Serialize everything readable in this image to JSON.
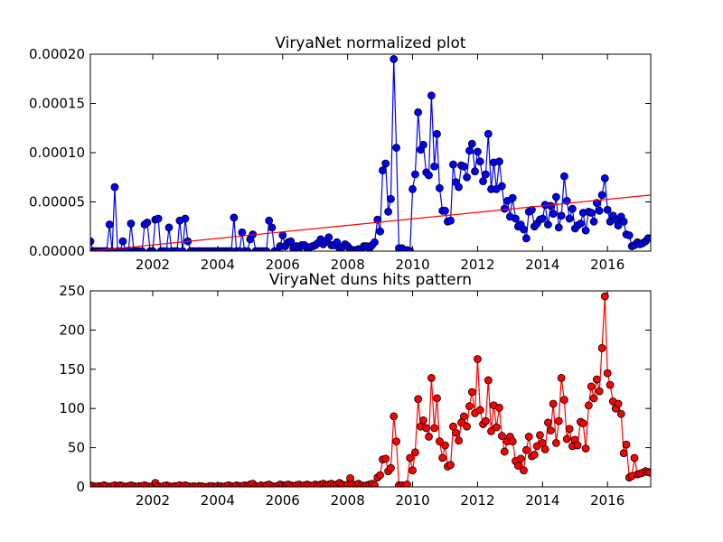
{
  "chart_data": [
    {
      "type": "line",
      "title": "ViryaNet normalized plot",
      "color": "#0000ff",
      "x": [
        2000.08,
        2000.17,
        2000.25,
        2000.33,
        2000.42,
        2000.5,
        2000.58,
        2000.67,
        2000.75,
        2000.83,
        2000.92,
        2001,
        2001.08,
        2001.17,
        2001.25,
        2001.33,
        2001.42,
        2001.5,
        2001.58,
        2001.67,
        2001.75,
        2001.83,
        2001.92,
        2002,
        2002.08,
        2002.17,
        2002.25,
        2002.33,
        2002.42,
        2002.5,
        2002.58,
        2002.67,
        2002.75,
        2002.83,
        2002.92,
        2003,
        2003.08,
        2003.17,
        2003.25,
        2003.33,
        2003.42,
        2003.5,
        2003.58,
        2003.67,
        2003.75,
        2003.83,
        2003.92,
        2004,
        2004.08,
        2004.17,
        2004.25,
        2004.33,
        2004.42,
        2004.5,
        2004.58,
        2004.67,
        2004.75,
        2004.83,
        2004.92,
        2005,
        2005.08,
        2005.17,
        2005.25,
        2005.33,
        2005.42,
        2005.5,
        2005.58,
        2005.67,
        2005.75,
        2005.83,
        2005.92,
        2006,
        2006.08,
        2006.17,
        2006.25,
        2006.33,
        2006.42,
        2006.5,
        2006.58,
        2006.67,
        2006.75,
        2006.83,
        2006.92,
        2007,
        2007.08,
        2007.17,
        2007.25,
        2007.33,
        2007.42,
        2007.5,
        2007.58,
        2007.67,
        2007.75,
        2007.83,
        2007.92,
        2008,
        2008.08,
        2008.17,
        2008.25,
        2008.33,
        2008.42,
        2008.5,
        2008.58,
        2008.67,
        2008.75,
        2008.83,
        2008.92,
        2009,
        2009.08,
        2009.17,
        2009.25,
        2009.33,
        2009.42,
        2009.5,
        2009.58,
        2009.67,
        2009.75,
        2009.83,
        2009.92,
        2010,
        2010.08,
        2010.17,
        2010.25,
        2010.33,
        2010.42,
        2010.5,
        2010.58,
        2010.67,
        2010.75,
        2010.83,
        2010.92,
        2011,
        2011.08,
        2011.17,
        2011.25,
        2011.33,
        2011.42,
        2011.5,
        2011.58,
        2011.67,
        2011.75,
        2011.83,
        2011.92,
        2012,
        2012.08,
        2012.17,
        2012.25,
        2012.33,
        2012.42,
        2012.5,
        2012.58,
        2012.67,
        2012.75,
        2012.83,
        2012.92,
        2013,
        2013.08,
        2013.17,
        2013.25,
        2013.33,
        2013.42,
        2013.5,
        2013.58,
        2013.67,
        2013.75,
        2013.83,
        2013.92,
        2014,
        2014.08,
        2014.17,
        2014.25,
        2014.33,
        2014.42,
        2014.5,
        2014.58,
        2014.67,
        2014.75,
        2014.83,
        2014.92,
        2015,
        2015.08,
        2015.17,
        2015.25,
        2015.33,
        2015.42,
        2015.5,
        2015.58,
        2015.67,
        2015.75,
        2015.83,
        2015.92,
        2016,
        2016.08,
        2016.17,
        2016.25,
        2016.33,
        2016.42,
        2016.5,
        2016.58,
        2016.67,
        2016.75,
        2016.83,
        2016.92,
        2017,
        2017.08,
        2017.17,
        2017.25,
        2017.33
      ],
      "values": [
        1e-05,
        0,
        0,
        0,
        0,
        0,
        0,
        2.7e-05,
        0,
        6.5e-05,
        0,
        0,
        1e-05,
        0,
        0,
        2.8e-05,
        0,
        0,
        0,
        0,
        2.7e-05,
        2.9e-05,
        0,
        0,
        3.2e-05,
        3.3e-05,
        0,
        0,
        0,
        2.4e-05,
        0,
        0,
        0,
        3.1e-05,
        0,
        3.3e-05,
        1e-05,
        0,
        0,
        0,
        0,
        0,
        0,
        0,
        0,
        0,
        0,
        0,
        0,
        0,
        0,
        0,
        0,
        3.4e-05,
        0,
        0,
        1.9e-05,
        0,
        0,
        1.2e-05,
        1.7e-05,
        0,
        0,
        0,
        0,
        0,
        3.1e-05,
        2.4e-05,
        0,
        0,
        5e-06,
        1.6e-05,
        5e-06,
        9e-06,
        1e-05,
        3e-06,
        5e-06,
        3e-06,
        6e-06,
        6e-06,
        3e-06,
        4e-06,
        5e-06,
        6e-06,
        8e-06,
        1.2e-05,
        7e-06,
        1e-05,
        1.4e-05,
        6e-06,
        6e-06,
        9e-06,
        3e-06,
        4e-06,
        7e-06,
        5e-06,
        2e-06,
        1e-06,
        1e-06,
        2e-06,
        2e-06,
        5e-06,
        5e-06,
        3e-06,
        6e-06,
        9e-06,
        3.2e-05,
        2e-05,
        8.2e-05,
        8.9e-05,
        4e-05,
        5.3e-05,
        0.000195,
        0.000105,
        3e-06,
        3e-06,
        1e-06,
        1e-06,
        0,
        6.3e-05,
        7.8e-05,
        0.000141,
        0.000103,
        0.000108,
        8e-05,
        7.7e-05,
        0.000158,
        8.6e-05,
        0.000119,
        6.4e-05,
        4.1e-05,
        4.1e-05,
        3e-05,
        3.1e-05,
        8.8e-05,
        7e-05,
        6.5e-05,
        8.7e-05,
        8.6e-05,
        7.5e-05,
        0.000102,
        0.000109,
        8.1e-05,
        0.000101,
        9.1e-05,
        7.1e-05,
        7.8e-05,
        0.000119,
        6.3e-05,
        9e-05,
        6.3e-05,
        9.1e-05,
        6.6e-05,
        4.3e-05,
        5.1e-05,
        3.5e-05,
        5.4e-05,
        3.3e-05,
        2.5e-05,
        2.7e-05,
        2.2e-05,
        1.3e-05,
        4e-05,
        4.2e-05,
        2.5e-05,
        2.8e-05,
        3.2e-05,
        3.3e-05,
        4.7e-05,
        2.7e-05,
        4.6e-05,
        3.8e-05,
        5.5e-05,
        2.4e-05,
        3.6e-05,
        7.6e-05,
        5.1e-05,
        3.3e-05,
        4.3e-05,
        2.3e-05,
        2.6e-05,
        2.8e-05,
        3.9e-05,
        2.1e-05,
        4e-05,
        3.9e-05,
        3e-05,
        4.9e-05,
        4.1e-05,
        5.7e-05,
        7.4e-05,
        4.2e-05,
        3e-05,
        3.6e-05,
        3.2e-05,
        2.6e-05,
        3.5e-05,
        3e-05,
        1.7e-05,
        1.6e-05,
        5e-06,
        6e-06,
        9e-06,
        7e-06,
        8e-06,
        1e-05,
        1.3e-05,
        1.3e-05
      ],
      "trend_line": {
        "x": [
          2000.08,
          2017.33
        ],
        "values": [
          0,
          5.7e-05
        ],
        "color": "#ff0000"
      },
      "xlim": [
        2000.08,
        2017.33
      ],
      "xticks": [
        2002,
        2004,
        2006,
        2008,
        2010,
        2012,
        2014,
        2016
      ],
      "ylim": [
        0,
        0.0002
      ],
      "yticks": [
        {
          "value": 0,
          "label": "0.00000"
        },
        {
          "value": 5e-05,
          "label": "0.00005"
        },
        {
          "value": 0.0001,
          "label": "0.00010"
        },
        {
          "value": 0.00015,
          "label": "0.00015"
        },
        {
          "value": 0.0002,
          "label": "0.00020"
        }
      ]
    },
    {
      "type": "line",
      "title": "ViryaNet duns hits pattern",
      "color": "#ff0000",
      "x": [
        2000.08,
        2000.17,
        2000.25,
        2000.33,
        2000.42,
        2000.5,
        2000.58,
        2000.67,
        2000.75,
        2000.83,
        2000.92,
        2001,
        2001.08,
        2001.17,
        2001.25,
        2001.33,
        2001.42,
        2001.5,
        2001.58,
        2001.67,
        2001.75,
        2001.83,
        2001.92,
        2002,
        2002.08,
        2002.17,
        2002.25,
        2002.33,
        2002.42,
        2002.5,
        2002.58,
        2002.67,
        2002.75,
        2002.83,
        2002.92,
        2003,
        2003.08,
        2003.17,
        2003.25,
        2003.33,
        2003.42,
        2003.5,
        2003.58,
        2003.67,
        2003.75,
        2003.83,
        2003.92,
        2004,
        2004.08,
        2004.17,
        2004.25,
        2004.33,
        2004.42,
        2004.5,
        2004.58,
        2004.67,
        2004.75,
        2004.83,
        2004.92,
        2005,
        2005.08,
        2005.17,
        2005.25,
        2005.33,
        2005.42,
        2005.5,
        2005.58,
        2005.67,
        2005.75,
        2005.83,
        2005.92,
        2006,
        2006.08,
        2006.17,
        2006.25,
        2006.33,
        2006.42,
        2006.5,
        2006.58,
        2006.67,
        2006.75,
        2006.83,
        2006.92,
        2007,
        2007.08,
        2007.17,
        2007.25,
        2007.33,
        2007.42,
        2007.5,
        2007.58,
        2007.67,
        2007.75,
        2007.83,
        2007.92,
        2008,
        2008.08,
        2008.17,
        2008.25,
        2008.33,
        2008.42,
        2008.5,
        2008.58,
        2008.67,
        2008.75,
        2008.83,
        2008.92,
        2009,
        2009.08,
        2009.17,
        2009.25,
        2009.33,
        2009.42,
        2009.5,
        2009.58,
        2009.67,
        2009.75,
        2009.83,
        2009.92,
        2010,
        2010.08,
        2010.17,
        2010.25,
        2010.33,
        2010.42,
        2010.5,
        2010.58,
        2010.67,
        2010.75,
        2010.83,
        2010.92,
        2011,
        2011.08,
        2011.17,
        2011.25,
        2011.33,
        2011.42,
        2011.5,
        2011.58,
        2011.67,
        2011.75,
        2011.83,
        2011.92,
        2012,
        2012.08,
        2012.17,
        2012.25,
        2012.33,
        2012.42,
        2012.5,
        2012.58,
        2012.67,
        2012.75,
        2012.83,
        2012.92,
        2013,
        2013.08,
        2013.17,
        2013.25,
        2013.33,
        2013.42,
        2013.5,
        2013.58,
        2013.67,
        2013.75,
        2013.83,
        2013.92,
        2014,
        2014.08,
        2014.17,
        2014.25,
        2014.33,
        2014.42,
        2014.5,
        2014.58,
        2014.67,
        2014.75,
        2014.83,
        2014.92,
        2015,
        2015.08,
        2015.17,
        2015.25,
        2015.33,
        2015.42,
        2015.5,
        2015.58,
        2015.67,
        2015.75,
        2015.83,
        2015.92,
        2016,
        2016.08,
        2016.17,
        2016.25,
        2016.33,
        2016.42,
        2016.5,
        2016.58,
        2016.67,
        2016.75,
        2016.83,
        2016.92,
        2017,
        2017.08,
        2017.17,
        2017.25,
        2017.33
      ],
      "values": [
        2,
        1,
        0,
        1,
        1,
        2,
        1,
        0,
        1,
        2,
        1,
        2,
        1,
        0,
        1,
        2,
        1,
        0,
        1,
        1,
        2,
        1,
        0,
        1,
        5,
        1,
        0,
        1,
        2,
        1,
        0,
        1,
        1,
        2,
        1,
        2,
        1,
        0,
        1,
        0,
        1,
        1,
        0,
        0,
        1,
        1,
        0,
        1,
        1,
        0,
        1,
        2,
        1,
        0,
        2,
        1,
        1,
        2,
        1,
        3,
        4,
        1,
        0,
        2,
        1,
        2,
        3,
        1,
        0,
        1,
        3,
        2,
        2,
        3,
        2,
        1,
        2,
        3,
        1,
        2,
        3,
        2,
        1,
        3,
        2,
        3,
        4,
        2,
        3,
        4,
        2,
        3,
        5,
        3,
        2,
        3,
        11,
        3,
        2,
        4,
        2,
        1,
        2,
        3,
        4,
        2,
        12,
        15,
        35,
        36,
        20,
        24,
        90,
        58,
        2,
        2,
        1,
        3,
        37,
        21,
        44,
        112,
        77,
        85,
        75,
        64,
        139,
        75,
        113,
        58,
        37,
        53,
        26,
        28,
        77,
        69,
        59,
        82,
        90,
        77,
        103,
        121,
        94,
        163,
        98,
        80,
        84,
        136,
        71,
        104,
        76,
        101,
        65,
        45,
        58,
        64,
        58,
        33,
        27,
        36,
        21,
        47,
        64,
        39,
        41,
        52,
        66,
        56,
        48,
        82,
        72,
        106,
        56,
        84,
        139,
        111,
        61,
        74,
        52,
        60,
        53,
        83,
        81,
        49,
        104,
        128,
        113,
        137,
        122,
        177,
        243,
        145,
        130,
        109,
        100,
        106,
        93,
        43,
        54,
        12,
        14,
        37,
        16,
        17,
        18,
        20,
        19,
        18
      ],
      "xlim": [
        2000.08,
        2017.33
      ],
      "xticks": [
        2002,
        2004,
        2006,
        2008,
        2010,
        2012,
        2014,
        2016
      ],
      "ylim": [
        0,
        250
      ],
      "yticks": [
        0,
        50,
        100,
        150,
        200,
        250
      ]
    }
  ]
}
